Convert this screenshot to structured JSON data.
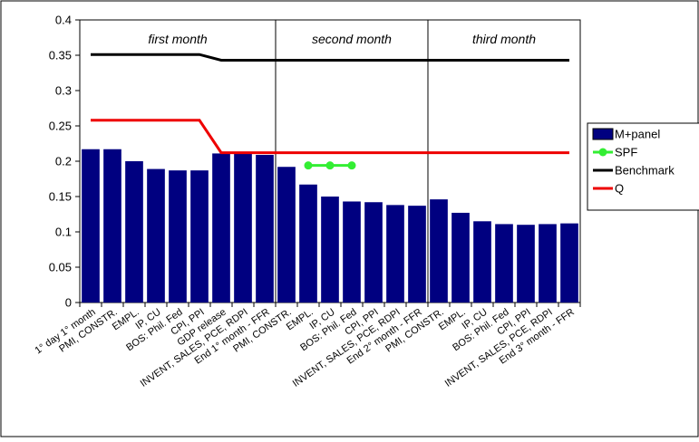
{
  "chart_data": {
    "type": "bar",
    "title": "",
    "xlabel": "",
    "ylabel": "",
    "ylim": [
      0,
      0.4
    ],
    "yticks": [
      "0",
      "0.05",
      "0.1",
      "0.15",
      "0.2",
      "0.25",
      "0.3",
      "0.35",
      "0.4"
    ],
    "grid": false,
    "legend_position": "right",
    "categories": [
      "1° day 1° month",
      "PMI, CONSTR.",
      "EMPL.",
      "IP, CU",
      "BOS: Phil. Fed",
      "CPI, PPI",
      "GDP release",
      "INVENT, SALES, PCE, RDPI",
      "End 1° month - FFR",
      "PMI, CONSTR.",
      "EMPL.",
      "IP, CU",
      "BOS: Phil. Fed",
      "CPI, PPI",
      "INVENT, SALES, PCE, RDPI",
      "End 2° month - FFR",
      "PMI, CONSTR.",
      "EMPL.",
      "IP, CU",
      "BOS: Phil. Fed",
      "CPI, PPI",
      "INVENT, SALES, PCE, RDPI",
      "End 3° month - FFR"
    ],
    "months": [
      "first month",
      "second month",
      "third month"
    ],
    "series": [
      {
        "name": "M+panel",
        "kind": "bar",
        "color": "#000080",
        "values": [
          0.217,
          0.217,
          0.2,
          0.189,
          0.187,
          0.187,
          0.211,
          0.211,
          0.209,
          0.192,
          0.167,
          0.15,
          0.143,
          0.142,
          0.138,
          0.137,
          0.146,
          0.127,
          0.115,
          0.111,
          0.11,
          0.111,
          0.112
        ]
      },
      {
        "name": "SPF",
        "kind": "line-marker",
        "color": "#33ee33",
        "values": [
          null,
          null,
          null,
          null,
          null,
          null,
          null,
          null,
          null,
          null,
          0.194,
          0.194,
          0.194,
          null,
          null,
          null,
          null,
          null,
          null,
          null,
          null,
          null,
          null
        ]
      },
      {
        "name": "Benchmark",
        "kind": "line",
        "color": "#000000",
        "values": [
          0.351,
          0.351,
          0.351,
          0.351,
          0.351,
          0.351,
          0.343,
          0.343,
          0.343,
          0.343,
          0.343,
          0.343,
          0.343,
          0.343,
          0.343,
          0.343,
          0.343,
          0.343,
          0.343,
          0.343,
          0.343,
          0.343,
          0.343
        ]
      },
      {
        "name": "Q",
        "kind": "line",
        "color": "#ee0000",
        "values": [
          0.258,
          0.258,
          0.258,
          0.258,
          0.258,
          0.258,
          0.212,
          0.212,
          0.212,
          0.212,
          0.212,
          0.212,
          0.212,
          0.212,
          0.212,
          0.212,
          0.212,
          0.212,
          0.212,
          0.212,
          0.212,
          0.212,
          0.212
        ]
      }
    ]
  }
}
